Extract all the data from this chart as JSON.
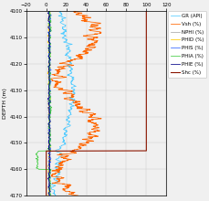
{
  "depth_min": 4100,
  "depth_max": 4170,
  "x_min": -20,
  "x_max": 120,
  "x_ticks": [
    -20,
    0,
    20,
    40,
    60,
    80,
    100,
    120
  ],
  "y_ticks": [
    4100,
    4110,
    4120,
    4130,
    4140,
    4150,
    4160,
    4170
  ],
  "ylabel": "DEPTH (m)",
  "background_color": "#f0f0f0",
  "legend_entries": [
    {
      "label": "GR (API)",
      "color": "#55ccff"
    },
    {
      "label": "Vsh (%)",
      "color": "#ff6600"
    },
    {
      "label": "NPHI (%)",
      "color": "#aaaaaa"
    },
    {
      "label": "PHID (%)",
      "color": "#ffcc00"
    },
    {
      "label": "PHIS (%)",
      "color": "#3366ff"
    },
    {
      "label": "PHIA (%)",
      "color": "#44cc44"
    },
    {
      "label": "PHIE (%)",
      "color": "#000088"
    },
    {
      "label": "Shc (%)",
      "color": "#8b1500"
    }
  ],
  "grid_color": "#cccccc",
  "figsize": [
    2.29,
    2.2
  ],
  "dpi": 100
}
